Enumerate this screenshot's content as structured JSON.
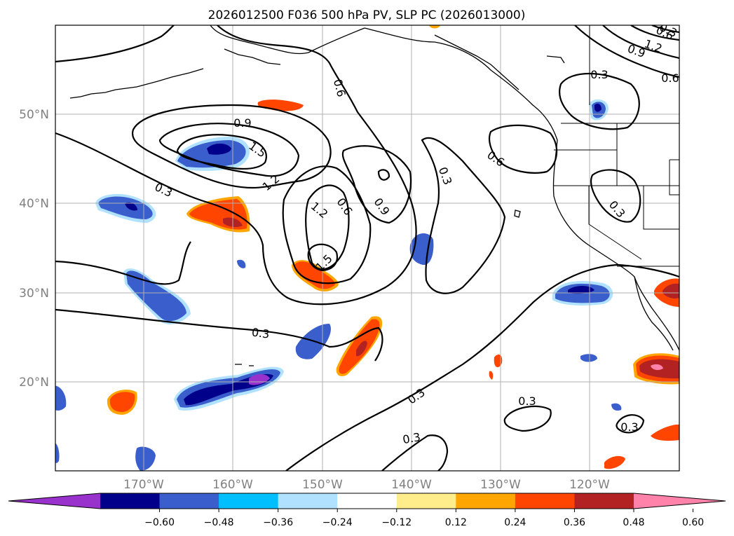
{
  "title": "2026012500 F036 500 hPa PV, SLP PC (2026013000)",
  "lon_ticks": [
    "170°W",
    "160°W",
    "150°W",
    "140°W",
    "130°W",
    "120°W"
  ],
  "lat_ticks": [
    "50°N",
    "40°N",
    "30°N",
    "20°N"
  ],
  "colorbar": {
    "colors": [
      "#9932cc",
      "#00008b",
      "#3a5fcd",
      "#00bfff",
      "#b0e2ff",
      "#ffffff",
      "#ffec8b",
      "#ffa500",
      "#ff4500",
      "#b22222",
      "#ff82ab"
    ],
    "ticks": [
      "−0.60",
      "−0.48",
      "−0.36",
      "−0.24",
      "−0.12",
      "0.12",
      "0.24",
      "0.36",
      "0.48",
      "0.60"
    ]
  },
  "contour_labels": [
    "0.9",
    "1.5",
    "1.2",
    "0.3",
    "0.6",
    "1.2",
    "0.6",
    "0.9",
    "1.5",
    "0.6",
    "0.3",
    "0.6",
    "0.3",
    "0.3",
    "0.3",
    "0.3",
    "0.3",
    "0.3",
    "0.3",
    "0.9",
    "1.2",
    "0.6",
    "0.3"
  ]
}
